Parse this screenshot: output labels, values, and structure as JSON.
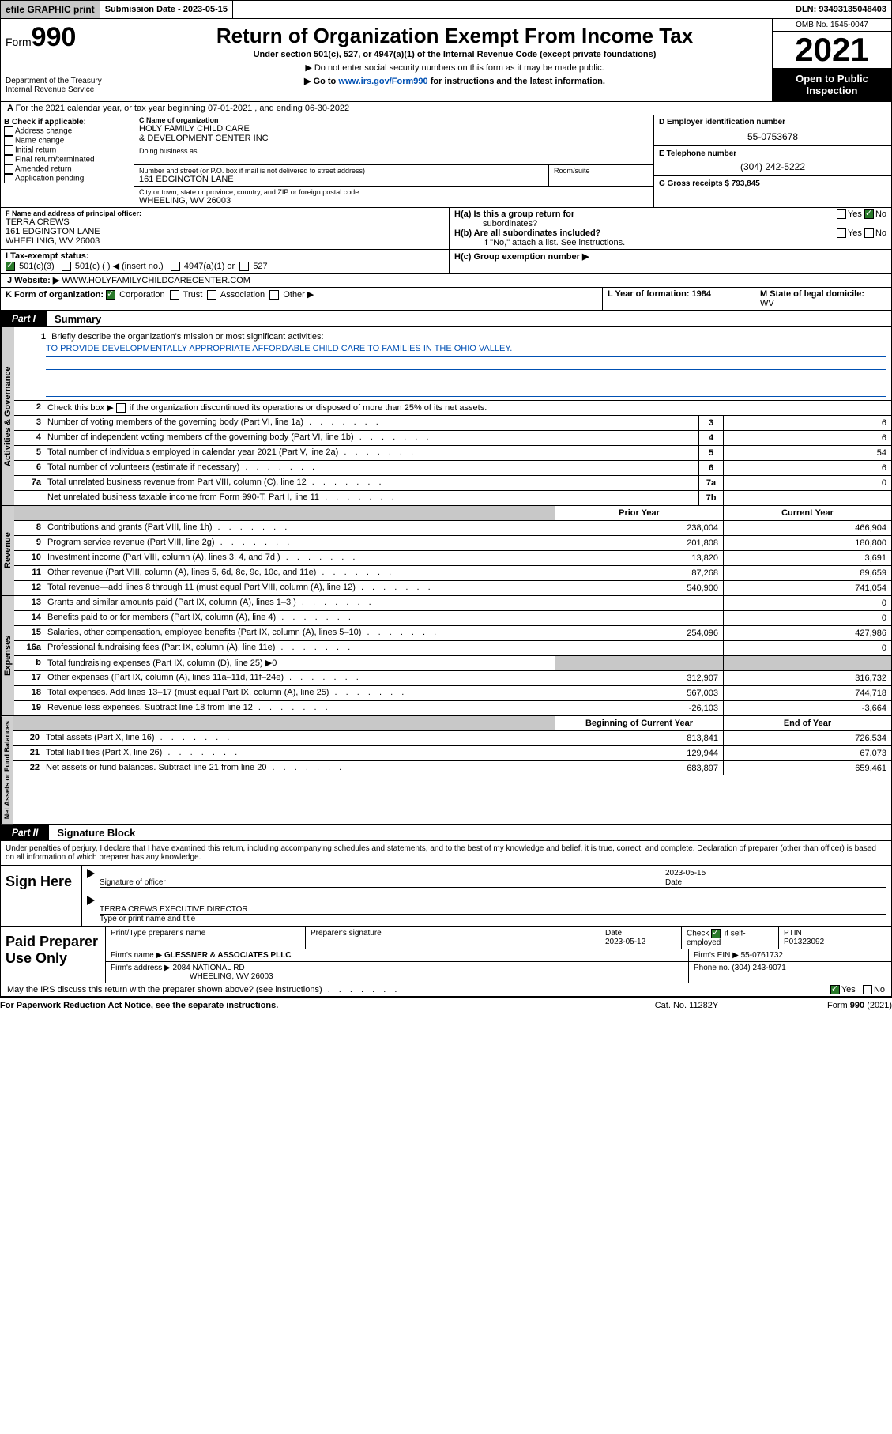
{
  "topbar": {
    "efile": "efile GRAPHIC print",
    "sub_label": "Submission Date - 2023-05-15",
    "dln": "DLN: 93493135048403"
  },
  "header": {
    "form_word": "Form",
    "form_no": "990",
    "dept1": "Department of the Treasury",
    "dept2": "Internal Revenue Service",
    "title": "Return of Organization Exempt From Income Tax",
    "sub1": "Under section 501(c), 527, or 4947(a)(1) of the Internal Revenue Code (except private foundations)",
    "sub2": "▶ Do not enter social security numbers on this form as it may be made public.",
    "sub3_pre": "▶ Go to ",
    "sub3_link": "www.irs.gov/Form990",
    "sub3_post": " for instructions and the latest information.",
    "omb": "OMB No. 1545-0047",
    "year": "2021",
    "open_pub": "Open to Public Inspection"
  },
  "line_a": "For the 2021 calendar year, or tax year beginning 07-01-2021  , and ending 06-30-2022",
  "col_b": {
    "hdr": "B Check if applicable:",
    "items": [
      "Address change",
      "Name change",
      "Initial return",
      "Final return/terminated",
      "Amended return",
      "Application pending"
    ]
  },
  "col_c": {
    "name_lbl": "C Name of organization",
    "name1": "HOLY FAMILY CHILD CARE",
    "name2": "& DEVELOPMENT CENTER INC",
    "dba_lbl": "Doing business as",
    "addr_lbl": "Number and street (or P.O. box if mail is not delivered to street address)",
    "room_lbl": "Room/suite",
    "addr": "161 EDGINGTON LANE",
    "city_lbl": "City or town, state or province, country, and ZIP or foreign postal code",
    "city": "WHEELING, WV  26003"
  },
  "col_right": {
    "d_lbl": "D Employer identification number",
    "d_val": "55-0753678",
    "e_lbl": "E Telephone number",
    "e_val": "(304) 242-5222",
    "g_lbl": "G Gross receipts $ 793,845"
  },
  "officer": {
    "lbl": "F Name and address of principal officer:",
    "name": "TERRA CREWS",
    "addr1": "161 EDGINGTON LANE",
    "addr2": "WHEELINIG, WV  26003"
  },
  "h": {
    "a1": "H(a)  Is this a group return for",
    "a2": "subordinates?",
    "b": "H(b)  Are all subordinates included?",
    "b2": "If \"No,\" attach a list. See instructions.",
    "c": "H(c)  Group exemption number ▶",
    "yes": "Yes",
    "no": "No"
  },
  "tax_status": {
    "lbl": "I   Tax-exempt status:",
    "c3": "501(c)(3)",
    "c": "501(c) (  ) ◀ (insert no.)",
    "a1": "4947(a)(1) or",
    "s527": "527"
  },
  "website": {
    "lbl": "J   Website: ▶",
    "val": " WWW.HOLYFAMILYCHILDCARECENTER.COM"
  },
  "k": {
    "lbl": "K Form of organization:",
    "corp": "Corporation",
    "trust": "Trust",
    "assoc": "Association",
    "other": "Other ▶"
  },
  "l": {
    "lbl": "L Year of formation: 1984"
  },
  "m": {
    "lbl": "M State of legal domicile:",
    "val": "WV"
  },
  "part1": {
    "tag": "Part I",
    "title": "Summary"
  },
  "mission": {
    "q1": "Briefly describe the organization's mission or most significant activities:",
    "ans": "TO PROVIDE DEVELOPMENTALLY APPROPRIATE AFFORDABLE CHILD CARE TO FAMILIES IN THE OHIO VALLEY.",
    "q2_pre": "Check this box ▶",
    "q2_post": " if the organization discontinued its operations or disposed of more than 25% of its net assets."
  },
  "lines_gov": [
    {
      "n": "3",
      "t": "Number of voting members of the governing body (Part VI, line 1a)",
      "k": "3",
      "v": "6"
    },
    {
      "n": "4",
      "t": "Number of independent voting members of the governing body (Part VI, line 1b)",
      "k": "4",
      "v": "6"
    },
    {
      "n": "5",
      "t": "Total number of individuals employed in calendar year 2021 (Part V, line 2a)",
      "k": "5",
      "v": "54"
    },
    {
      "n": "6",
      "t": "Total number of volunteers (estimate if necessary)",
      "k": "6",
      "v": "6"
    },
    {
      "n": "7a",
      "t": "Total unrelated business revenue from Part VIII, column (C), line 12",
      "k": "7a",
      "v": "0"
    },
    {
      "n": "",
      "t": "Net unrelated business taxable income from Form 990-T, Part I, line 11",
      "k": "7b",
      "v": ""
    }
  ],
  "col_hdrs": {
    "prior": "Prior Year",
    "curr": "Current Year",
    "boy": "Beginning of Current Year",
    "eoy": "End of Year"
  },
  "lines_rev": [
    {
      "n": "8",
      "t": "Contributions and grants (Part VIII, line 1h)",
      "p": "238,004",
      "c": "466,904"
    },
    {
      "n": "9",
      "t": "Program service revenue (Part VIII, line 2g)",
      "p": "201,808",
      "c": "180,800"
    },
    {
      "n": "10",
      "t": "Investment income (Part VIII, column (A), lines 3, 4, and 7d )",
      "p": "13,820",
      "c": "3,691"
    },
    {
      "n": "11",
      "t": "Other revenue (Part VIII, column (A), lines 5, 6d, 8c, 9c, 10c, and 11e)",
      "p": "87,268",
      "c": "89,659"
    },
    {
      "n": "12",
      "t": "Total revenue—add lines 8 through 11 (must equal Part VIII, column (A), line 12)",
      "p": "540,900",
      "c": "741,054"
    }
  ],
  "lines_exp": [
    {
      "n": "13",
      "t": "Grants and similar amounts paid (Part IX, column (A), lines 1–3 )",
      "p": "",
      "c": "0"
    },
    {
      "n": "14",
      "t": "Benefits paid to or for members (Part IX, column (A), line 4)",
      "p": "",
      "c": "0"
    },
    {
      "n": "15",
      "t": "Salaries, other compensation, employee benefits (Part IX, column (A), lines 5–10)",
      "p": "254,096",
      "c": "427,986"
    },
    {
      "n": "16a",
      "t": "Professional fundraising fees (Part IX, column (A), line 11e)",
      "p": "",
      "c": "0"
    },
    {
      "n": "b",
      "t": "Total fundraising expenses (Part IX, column (D), line 25) ▶0",
      "p": "GREY",
      "c": "GREY"
    },
    {
      "n": "17",
      "t": "Other expenses (Part IX, column (A), lines 11a–11d, 11f–24e)",
      "p": "312,907",
      "c": "316,732"
    },
    {
      "n": "18",
      "t": "Total expenses. Add lines 13–17 (must equal Part IX, column (A), line 25)",
      "p": "567,003",
      "c": "744,718"
    },
    {
      "n": "19",
      "t": "Revenue less expenses. Subtract line 18 from line 12",
      "p": "-26,103",
      "c": "-3,664"
    }
  ],
  "lines_na": [
    {
      "n": "20",
      "t": "Total assets (Part X, line 16)",
      "p": "813,841",
      "c": "726,534"
    },
    {
      "n": "21",
      "t": "Total liabilities (Part X, line 26)",
      "p": "129,944",
      "c": "67,073"
    },
    {
      "n": "22",
      "t": "Net assets or fund balances. Subtract line 21 from line 20",
      "p": "683,897",
      "c": "659,461"
    }
  ],
  "vert": {
    "gov": "Activities & Governance",
    "rev": "Revenue",
    "exp": "Expenses",
    "na": "Net Assets or Fund Balances"
  },
  "part2": {
    "tag": "Part II",
    "title": "Signature Block"
  },
  "penalty": "Under penalties of perjury, I declare that I have examined this return, including accompanying schedules and statements, and to the best of my knowledge and belief, it is true, correct, and complete. Declaration of preparer (other than officer) is based on all information of which preparer has any knowledge.",
  "sign": {
    "here": "Sign Here",
    "sig_lbl": "Signature of officer",
    "date_lbl": "Date",
    "date": "2023-05-15",
    "name": "TERRA CREWS  EXECUTIVE DIRECTOR",
    "name_lbl": "Type or print name and title"
  },
  "prep": {
    "lbl": "Paid Preparer Use Only",
    "h1": "Print/Type preparer's name",
    "h2": "Preparer's signature",
    "h3": "Date",
    "h3v": "2023-05-12",
    "h4a": "Check",
    "h4b": "if self-employed",
    "h5": "PTIN",
    "h5v": "P01323092",
    "firm_lbl": "Firm's name    ▶",
    "firm": "GLESSNER & ASSOCIATES PLLC",
    "ein_lbl": "Firm's EIN ▶",
    "ein": "55-0761732",
    "addr_lbl": "Firm's address ▶",
    "addr1": "2084 NATIONAL RD",
    "addr2": "WHEELING, WV  26003",
    "ph_lbl": "Phone no.",
    "ph": "(304) 243-9071"
  },
  "discuss": {
    "q": "May the IRS discuss this return with the preparer shown above? (see instructions)",
    "yes": "Yes",
    "no": "No"
  },
  "footer": {
    "pra": "For Paperwork Reduction Act Notice, see the separate instructions.",
    "cat": "Cat. No. 11282Y",
    "form": "Form 990 (2021)"
  }
}
